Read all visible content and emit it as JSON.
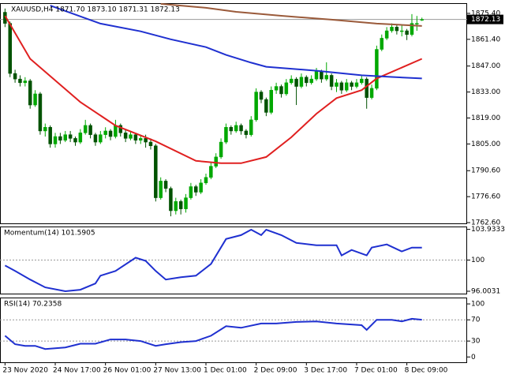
{
  "chart_data": [
    {
      "type": "candlestick",
      "title": "XAUUSD,H4  1871.70 1873.10 1871.31 1872.13",
      "up_color": "#00a800",
      "down_color": "#005200",
      "xlim": [
        -1,
        92
      ],
      "xticks": [
        {
          "value": 0,
          "label": "23 Nov 2020"
        },
        {
          "value": 10,
          "label": "24 Nov 17:00"
        },
        {
          "value": 20,
          "label": "26 Nov 01:00"
        },
        {
          "value": 30,
          "label": "27 Nov 13:00"
        },
        {
          "value": 40,
          "label": "1 Dec 01:00"
        },
        {
          "value": 50,
          "label": "2 Dec 09:00"
        },
        {
          "value": 60,
          "label": "3 Dec 17:00"
        },
        {
          "value": 70,
          "label": "7 Dec 01:00"
        },
        {
          "value": 80,
          "label": "8 Dec 09:00"
        }
      ],
      "ylim": [
        1762.2,
        1880.9
      ],
      "yticks": [
        {
          "value": 1875.4,
          "label": "1875.40"
        },
        {
          "value": 1861.4,
          "label": "1861.40"
        },
        {
          "value": 1847,
          "label": "1847.00"
        },
        {
          "value": 1833,
          "label": "1833.00"
        },
        {
          "value": 1819,
          "label": "1819.00"
        },
        {
          "value": 1805,
          "label": "1805.00"
        },
        {
          "value": 1790.6,
          "label": "1790.60"
        },
        {
          "value": 1776.6,
          "label": "1776.60"
        },
        {
          "value": 1762.6,
          "label": "1762.60"
        }
      ],
      "last_price": {
        "value": 1872.13,
        "label": "1872.13"
      },
      "candles": [
        [
          1876,
          1878,
          1868,
          1870
        ],
        [
          1870,
          1871,
          1841,
          1843
        ],
        [
          1843,
          1845,
          1838,
          1840
        ],
        [
          1840,
          1842,
          1836,
          1838
        ],
        [
          1838,
          1841,
          1836,
          1839
        ],
        [
          1839,
          1840,
          1824,
          1826
        ],
        [
          1826,
          1834,
          1825,
          1832
        ],
        [
          1832,
          1833,
          1810,
          1812
        ],
        [
          1812,
          1816,
          1809,
          1814
        ],
        [
          1814,
          1815,
          1803,
          1805
        ],
        [
          1805,
          1811,
          1803,
          1809
        ],
        [
          1809,
          1811,
          1805,
          1807
        ],
        [
          1807,
          1812,
          1806,
          1810
        ],
        [
          1810,
          1812,
          1806,
          1808
        ],
        [
          1808,
          1809,
          1804,
          1806
        ],
        [
          1806,
          1813,
          1805,
          1811
        ],
        [
          1811,
          1818,
          1810,
          1815
        ],
        [
          1815,
          1816,
          1808,
          1810
        ],
        [
          1810,
          1811,
          1804,
          1806
        ],
        [
          1806,
          1812,
          1805,
          1810
        ],
        [
          1810,
          1814,
          1808,
          1812
        ],
        [
          1812,
          1813,
          1807,
          1809
        ],
        [
          1809,
          1818,
          1808,
          1815
        ],
        [
          1815,
          1816,
          1809,
          1811
        ],
        [
          1811,
          1813,
          1806,
          1808
        ],
        [
          1808,
          1812,
          1807,
          1810
        ],
        [
          1810,
          1811,
          1805,
          1807
        ],
        [
          1807,
          1810,
          1805,
          1808
        ],
        [
          1808,
          1810,
          1803,
          1806
        ],
        [
          1806,
          1808,
          1802,
          1804
        ],
        [
          1804,
          1805,
          1774,
          1776
        ],
        [
          1776,
          1787,
          1775,
          1785
        ],
        [
          1785,
          1786,
          1779,
          1781
        ],
        [
          1781,
          1782,
          1766,
          1769
        ],
        [
          1769,
          1776,
          1767,
          1774
        ],
        [
          1774,
          1775,
          1767,
          1770
        ],
        [
          1770,
          1778,
          1768,
          1776
        ],
        [
          1776,
          1784,
          1775,
          1782
        ],
        [
          1782,
          1783,
          1777,
          1779
        ],
        [
          1779,
          1786,
          1778,
          1784
        ],
        [
          1784,
          1789,
          1783,
          1787
        ],
        [
          1787,
          1795,
          1786,
          1793
        ],
        [
          1793,
          1800,
          1792,
          1798
        ],
        [
          1798,
          1808,
          1797,
          1806
        ],
        [
          1806,
          1816,
          1805,
          1814
        ],
        [
          1814,
          1815,
          1810,
          1812
        ],
        [
          1812,
          1817,
          1811,
          1815
        ],
        [
          1815,
          1816,
          1810,
          1812
        ],
        [
          1812,
          1813,
          1808,
          1810
        ],
        [
          1810,
          1820,
          1809,
          1818
        ],
        [
          1818,
          1835,
          1817,
          1833
        ],
        [
          1833,
          1834,
          1827,
          1829
        ],
        [
          1829,
          1830,
          1820,
          1822
        ],
        [
          1822,
          1836,
          1821,
          1834
        ],
        [
          1834,
          1838,
          1832,
          1836
        ],
        [
          1836,
          1837,
          1830,
          1832
        ],
        [
          1832,
          1840,
          1831,
          1838
        ],
        [
          1838,
          1842,
          1837,
          1840
        ],
        [
          1840,
          1841,
          1826,
          1836
        ],
        [
          1836,
          1843,
          1835,
          1841
        ],
        [
          1841,
          1842,
          1836,
          1838
        ],
        [
          1838,
          1842,
          1837,
          1840
        ],
        [
          1840,
          1846,
          1839,
          1844
        ],
        [
          1844,
          1845,
          1838,
          1840
        ],
        [
          1840,
          1849,
          1839,
          1842
        ],
        [
          1842,
          1843,
          1834,
          1836
        ],
        [
          1836,
          1840,
          1833,
          1838
        ],
        [
          1838,
          1839,
          1832,
          1834
        ],
        [
          1834,
          1840,
          1833,
          1838
        ],
        [
          1838,
          1839,
          1834,
          1836
        ],
        [
          1836,
          1840,
          1835,
          1838
        ],
        [
          1838,
          1842,
          1837,
          1840
        ],
        [
          1840,
          1841,
          1824,
          1830
        ],
        [
          1830,
          1837,
          1829,
          1835
        ],
        [
          1835,
          1858,
          1834,
          1856
        ],
        [
          1856,
          1864,
          1855,
          1862
        ],
        [
          1862,
          1868,
          1861,
          1866
        ],
        [
          1866,
          1870,
          1865,
          1868
        ],
        [
          1868,
          1869,
          1864,
          1866
        ],
        [
          1866,
          1869,
          1863,
          1866
        ],
        [
          1866,
          1867,
          1861,
          1864
        ],
        [
          1864,
          1875,
          1863,
          1870
        ],
        [
          1870,
          1874,
          1866,
          1870
        ],
        [
          1871.7,
          1873.1,
          1871.31,
          1872.13
        ]
      ],
      "series": [
        {
          "color": "#e02020",
          "x": [
            0,
            5,
            15,
            22,
            30,
            38,
            43,
            47,
            52,
            57,
            62,
            66,
            71,
            74,
            83
          ],
          "values": [
            1874.1,
            1850.9,
            1827.6,
            1814.9,
            1806.4,
            1795.9,
            1794.6,
            1794.6,
            1798,
            1808.6,
            1821.3,
            1829.7,
            1834,
            1840.3,
            1850.9
          ]
        },
        {
          "color": "#1f30d0",
          "x": [
            9,
            19,
            27,
            33,
            40,
            44,
            49,
            52,
            62,
            71,
            77,
            83
          ],
          "values": [
            1879.6,
            1869.9,
            1865.7,
            1861.4,
            1857.2,
            1853,
            1848.8,
            1846.6,
            1844.5,
            1842,
            1841.1,
            1840.3
          ]
        },
        {
          "color": "#9a5a3a",
          "x": [
            31,
            40,
            46,
            55,
            65,
            74,
            83
          ],
          "values": [
            1880.5,
            1878.4,
            1876.2,
            1874.1,
            1872,
            1869.9,
            1868.6
          ]
        }
      ]
    },
    {
      "type": "line",
      "title": "Momentum(14) 101.5905",
      "ylim": [
        95.7,
        104.3
      ],
      "yticks": [
        103.9333,
        100,
        96.0031
      ],
      "levels": [
        100
      ],
      "series": [
        {
          "color": "#1f30d0",
          "x": [
            0,
            2,
            5,
            8,
            12,
            15,
            18,
            19,
            22,
            26,
            28,
            30,
            32,
            35,
            38,
            41,
            44,
            47,
            49,
            51,
            52,
            55,
            58,
            62,
            66,
            67,
            69,
            72,
            73,
            76,
            79,
            81,
            83
          ],
          "values": [
            99.3,
            98.6,
            97.5,
            96.5,
            96,
            96.2,
            97,
            98,
            98.6,
            100.3,
            99.9,
            98.6,
            97.5,
            97.8,
            98,
            99.5,
            102.7,
            103.2,
            103.9,
            103.2,
            103.9,
            103.2,
            102.2,
            101.9,
            101.9,
            100.6,
            101.3,
            100.6,
            101.6,
            102,
            101.1,
            101.6,
            101.5905
          ]
        }
      ]
    },
    {
      "type": "line",
      "title": "RSI(14) 70.2358",
      "ylim": [
        -10,
        112
      ],
      "yticks": [
        100,
        70,
        30,
        0
      ],
      "levels": [
        70,
        30
      ],
      "series": [
        {
          "color": "#1f30d0",
          "x": [
            0,
            2,
            4,
            6,
            8,
            12,
            15,
            18,
            21,
            24,
            27,
            30,
            32,
            35,
            38,
            41,
            44,
            47,
            51,
            54,
            58,
            62,
            66,
            71,
            72,
            74,
            77,
            79,
            81,
            83
          ],
          "values": [
            40,
            24,
            21,
            21,
            15,
            18,
            25,
            25,
            33,
            33,
            30,
            21,
            24,
            28,
            30,
            40,
            58,
            55,
            63,
            63,
            66,
            67,
            63,
            60,
            51,
            70,
            70,
            67,
            72,
            70.2358
          ]
        }
      ]
    }
  ]
}
